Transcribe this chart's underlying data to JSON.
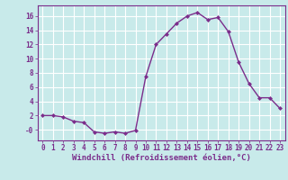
{
  "x": [
    0,
    1,
    2,
    3,
    4,
    5,
    6,
    7,
    8,
    9,
    10,
    11,
    12,
    13,
    14,
    15,
    16,
    17,
    18,
    19,
    20,
    21,
    22,
    23
  ],
  "y": [
    2.0,
    2.0,
    1.8,
    1.2,
    1.0,
    -0.3,
    -0.5,
    -0.3,
    -0.5,
    -0.1,
    7.5,
    12.0,
    13.5,
    15.0,
    16.0,
    16.5,
    15.5,
    15.8,
    13.8,
    9.5,
    6.5,
    4.5,
    4.5,
    3.0
  ],
  "line_color": "#7b2d8b",
  "marker": "D",
  "marker_size": 2,
  "background_color": "#c8eaea",
  "grid_color": "#ffffff",
  "xlabel": "Windchill (Refroidissement éolien,°C)",
  "xlim": [
    -0.5,
    23.5
  ],
  "ylim": [
    -1.5,
    17.5
  ],
  "yticks": [
    0,
    2,
    4,
    6,
    8,
    10,
    12,
    14,
    16
  ],
  "ytick_labels": [
    "-0",
    "2",
    "4",
    "6",
    "8",
    "10",
    "12",
    "14",
    "16"
  ],
  "xticks": [
    0,
    1,
    2,
    3,
    4,
    5,
    6,
    7,
    8,
    9,
    10,
    11,
    12,
    13,
    14,
    15,
    16,
    17,
    18,
    19,
    20,
    21,
    22,
    23
  ],
  "tick_color": "#7b2d8b",
  "xlabel_fontsize": 6.5,
  "tick_fontsize": 5.5,
  "linewidth": 1.0
}
